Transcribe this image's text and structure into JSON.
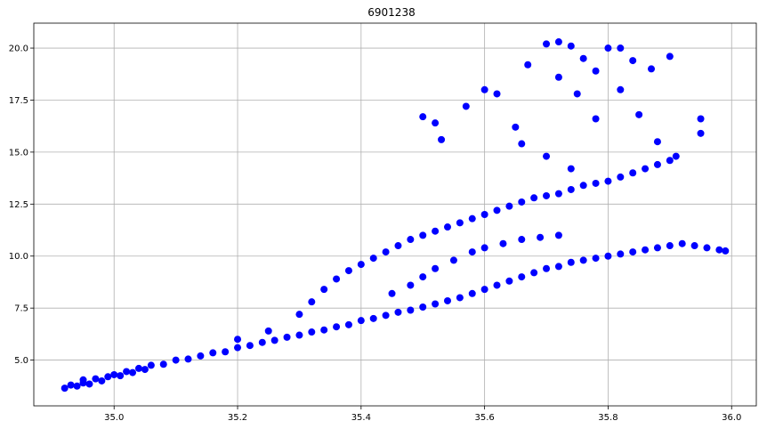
{
  "chart_data": {
    "type": "scatter",
    "title": "6901238",
    "xlabel": "",
    "ylabel": "",
    "xlim": [
      34.87,
      36.04
    ],
    "ylim": [
      2.8,
      21.2
    ],
    "xticks": [
      35.0,
      35.2,
      35.4,
      35.6,
      35.8,
      36.0
    ],
    "xtick_labels": [
      "35.0",
      "35.2",
      "35.4",
      "35.6",
      "35.8",
      "36.0"
    ],
    "yticks": [
      5.0,
      7.5,
      10.0,
      12.5,
      15.0,
      17.5,
      20.0
    ],
    "ytick_labels": [
      "5.0",
      "7.5",
      "10.0",
      "12.5",
      "15.0",
      "17.5",
      "20.0"
    ],
    "grid": true,
    "marker_color": "#0000ff",
    "series": [
      {
        "points": [
          [
            34.92,
            3.65
          ],
          [
            34.93,
            3.8
          ],
          [
            34.94,
            3.75
          ],
          [
            34.95,
            3.9
          ],
          [
            34.95,
            4.05
          ],
          [
            34.96,
            3.85
          ],
          [
            34.97,
            4.1
          ],
          [
            34.98,
            4.0
          ],
          [
            34.99,
            4.2
          ],
          [
            35.0,
            4.3
          ],
          [
            35.01,
            4.25
          ],
          [
            35.02,
            4.45
          ],
          [
            35.03,
            4.4
          ],
          [
            35.04,
            4.6
          ],
          [
            35.05,
            4.55
          ],
          [
            35.06,
            4.75
          ],
          [
            35.08,
            4.8
          ],
          [
            35.1,
            5.0
          ],
          [
            35.12,
            5.05
          ],
          [
            35.14,
            5.2
          ],
          [
            35.16,
            5.35
          ],
          [
            35.18,
            5.4
          ],
          [
            35.2,
            5.6
          ],
          [
            35.22,
            5.7
          ],
          [
            35.24,
            5.85
          ],
          [
            35.26,
            5.95
          ],
          [
            35.28,
            6.1
          ],
          [
            35.3,
            6.2
          ],
          [
            35.32,
            6.35
          ],
          [
            35.34,
            6.45
          ],
          [
            35.36,
            6.6
          ],
          [
            35.38,
            6.7
          ],
          [
            35.4,
            6.9
          ],
          [
            35.42,
            7.0
          ],
          [
            35.44,
            7.15
          ],
          [
            35.46,
            7.3
          ],
          [
            35.48,
            7.4
          ],
          [
            35.5,
            7.55
          ],
          [
            35.52,
            7.7
          ],
          [
            35.54,
            7.85
          ],
          [
            35.56,
            8.0
          ],
          [
            35.58,
            8.2
          ],
          [
            35.6,
            8.4
          ],
          [
            35.62,
            8.6
          ],
          [
            35.64,
            8.8
          ],
          [
            35.66,
            9.0
          ],
          [
            35.68,
            9.2
          ],
          [
            35.7,
            9.4
          ],
          [
            35.72,
            9.5
          ],
          [
            35.74,
            9.7
          ],
          [
            35.76,
            9.8
          ],
          [
            35.78,
            9.9
          ],
          [
            35.8,
            10.0
          ],
          [
            35.82,
            10.1
          ],
          [
            35.84,
            10.2
          ],
          [
            35.86,
            10.3
          ],
          [
            35.88,
            10.4
          ],
          [
            35.9,
            10.5
          ],
          [
            35.92,
            10.6
          ],
          [
            35.94,
            10.5
          ],
          [
            35.96,
            10.4
          ],
          [
            35.98,
            10.3
          ],
          [
            35.99,
            10.25
          ],
          [
            35.2,
            6.0
          ],
          [
            35.25,
            6.4
          ],
          [
            35.3,
            7.2
          ],
          [
            35.32,
            7.8
          ],
          [
            35.34,
            8.4
          ],
          [
            35.36,
            8.9
          ],
          [
            35.38,
            9.3
          ],
          [
            35.4,
            9.6
          ],
          [
            35.42,
            9.9
          ],
          [
            35.44,
            10.2
          ],
          [
            35.46,
            10.5
          ],
          [
            35.48,
            10.8
          ],
          [
            35.5,
            11.0
          ],
          [
            35.52,
            11.2
          ],
          [
            35.54,
            11.4
          ],
          [
            35.56,
            11.6
          ],
          [
            35.58,
            11.8
          ],
          [
            35.6,
            12.0
          ],
          [
            35.62,
            12.2
          ],
          [
            35.64,
            12.4
          ],
          [
            35.66,
            12.6
          ],
          [
            35.68,
            12.8
          ],
          [
            35.7,
            12.9
          ],
          [
            35.72,
            13.0
          ],
          [
            35.74,
            13.2
          ],
          [
            35.76,
            13.4
          ],
          [
            35.78,
            13.5
          ],
          [
            35.8,
            13.6
          ],
          [
            35.82,
            13.8
          ],
          [
            35.84,
            14.0
          ],
          [
            35.86,
            14.2
          ],
          [
            35.88,
            14.4
          ],
          [
            35.9,
            14.6
          ],
          [
            35.91,
            14.8
          ],
          [
            35.45,
            8.2
          ],
          [
            35.48,
            8.6
          ],
          [
            35.5,
            9.0
          ],
          [
            35.52,
            9.4
          ],
          [
            35.55,
            9.8
          ],
          [
            35.58,
            10.2
          ],
          [
            35.6,
            10.4
          ],
          [
            35.63,
            10.6
          ],
          [
            35.66,
            10.8
          ],
          [
            35.69,
            10.9
          ],
          [
            35.72,
            11.0
          ],
          [
            35.5,
            16.7
          ],
          [
            35.52,
            16.4
          ],
          [
            35.53,
            15.6
          ],
          [
            35.57,
            17.2
          ],
          [
            35.6,
            18.0
          ],
          [
            35.62,
            17.8
          ],
          [
            35.65,
            16.2
          ],
          [
            35.67,
            19.2
          ],
          [
            35.7,
            20.2
          ],
          [
            35.72,
            20.3
          ],
          [
            35.74,
            20.1
          ],
          [
            35.76,
            19.5
          ],
          [
            35.78,
            18.9
          ],
          [
            35.8,
            20.0
          ],
          [
            35.82,
            20.0
          ],
          [
            35.84,
            19.4
          ],
          [
            35.87,
            19.0
          ],
          [
            35.9,
            19.6
          ],
          [
            35.72,
            18.6
          ],
          [
            35.75,
            17.8
          ],
          [
            35.78,
            16.6
          ],
          [
            35.82,
            18.0
          ],
          [
            35.85,
            16.8
          ],
          [
            35.88,
            15.5
          ],
          [
            35.95,
            15.9
          ],
          [
            35.95,
            16.6
          ],
          [
            35.66,
            15.4
          ],
          [
            35.7,
            14.8
          ],
          [
            35.74,
            14.2
          ]
        ]
      }
    ]
  }
}
